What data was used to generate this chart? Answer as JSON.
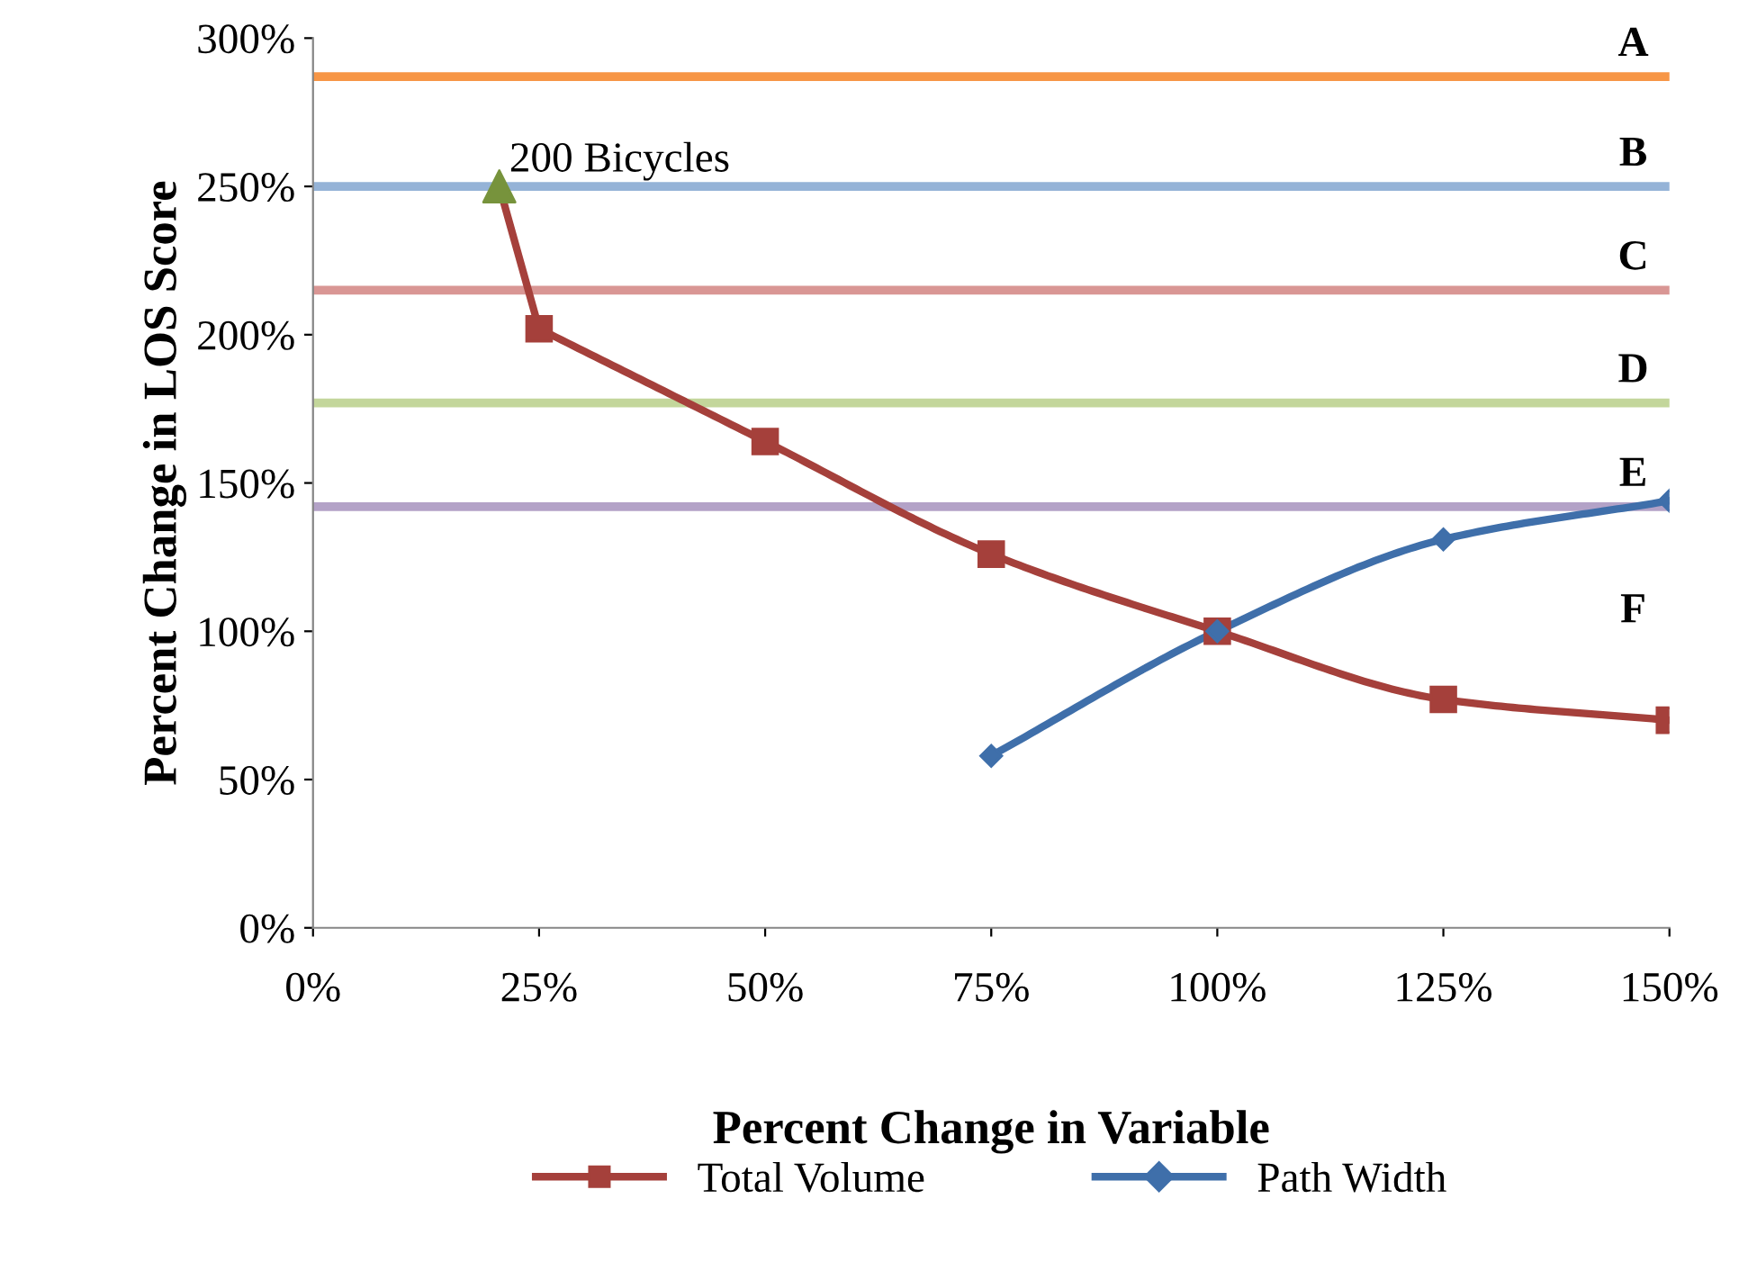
{
  "chart_data": {
    "type": "line",
    "xlabel": "Percent Change in Variable",
    "ylabel": "Percent Change in LOS Score",
    "xlim": [
      0,
      150
    ],
    "xticks": [
      {
        "value": 0,
        "label": "0%"
      },
      {
        "value": 25,
        "label": "25%"
      },
      {
        "value": 50,
        "label": "50%"
      },
      {
        "value": 75,
        "label": "75%"
      },
      {
        "value": 100,
        "label": "100%"
      },
      {
        "value": 125,
        "label": "125%"
      },
      {
        "value": 150,
        "label": "150%"
      }
    ],
    "ylim": [
      0,
      300
    ],
    "yticks": [
      {
        "value": 0,
        "label": "0%"
      },
      {
        "value": 50,
        "label": "50%"
      },
      {
        "value": 100,
        "label": "100%"
      },
      {
        "value": 150,
        "label": "150%"
      },
      {
        "value": 200,
        "label": "200%"
      },
      {
        "value": 250,
        "label": "250%"
      },
      {
        "value": 300,
        "label": "300%"
      }
    ],
    "series": [
      {
        "name": "Total Volume",
        "color": "#a5403b",
        "marker": "square",
        "x": [
          25,
          50,
          75,
          100,
          125,
          150
        ],
        "values": [
          202,
          164,
          126,
          100,
          77,
          70
        ]
      },
      {
        "name": "Path Width",
        "color": "#3f6faa",
        "marker": "diamond",
        "x": [
          75,
          100,
          125,
          150
        ],
        "values": [
          58,
          100,
          131,
          144
        ]
      },
      {
        "color": "#a5403b",
        "marker": "none",
        "x": [
          20.6,
          25
        ],
        "values": [
          250,
          202
        ]
      },
      {
        "type": "scatter",
        "color": "#77933c",
        "marker": "triangle",
        "x": [
          20.6
        ],
        "values": [
          250
        ]
      }
    ],
    "ref_lines": [
      {
        "axis": "y",
        "value": 287,
        "label": "A",
        "color": "#f79646"
      },
      {
        "axis": "y",
        "value": 250,
        "label": "B",
        "color": "#95b3d7"
      },
      {
        "axis": "y",
        "value": 215,
        "label": "C",
        "color": "#d99694"
      },
      {
        "axis": "y",
        "value": 177,
        "label": "D",
        "color": "#c3d69b"
      },
      {
        "axis": "y",
        "value": 142,
        "label": "E",
        "color": "#b3a2c7"
      }
    ],
    "annotations": [
      {
        "text": "200 Bicycles",
        "x": 20.6,
        "y": 250
      },
      "F"
    ],
    "grid": false,
    "legend": "bottom"
  }
}
